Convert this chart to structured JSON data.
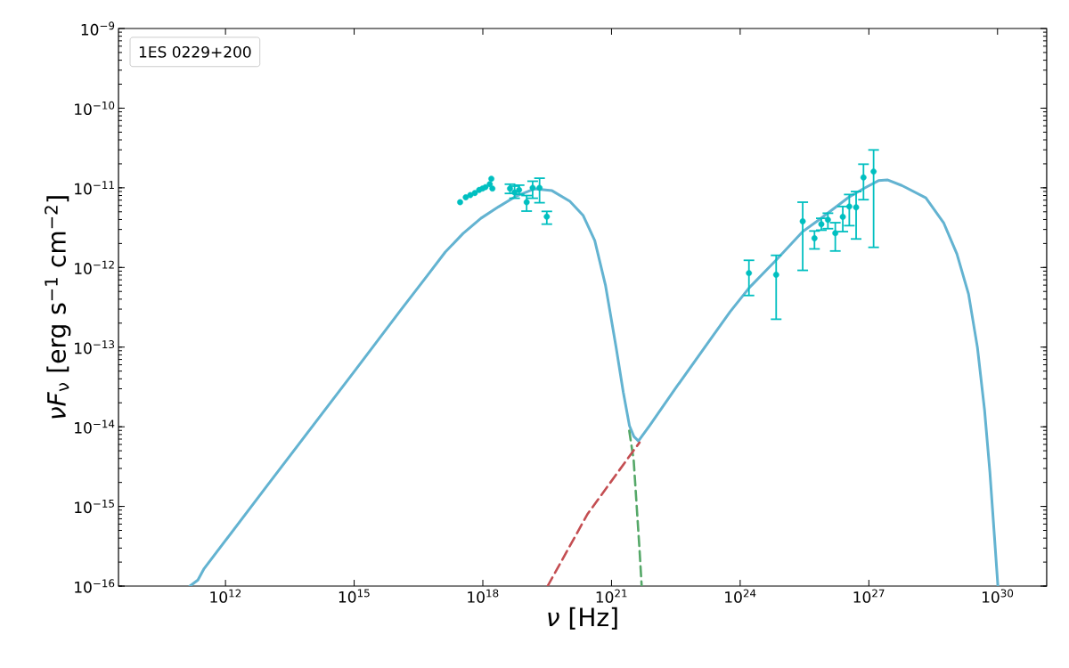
{
  "chart_data": {
    "type": "line",
    "xlabel": "*ν* [Hz]",
    "ylabel": "*νF*$_{ν}$ [erg s$^{−1}$ cm$^{−2}$]",
    "annotations": [
      "1ES 0229+200"
    ],
    "log": "xy",
    "xlim": [
      3200000000.0,
      1.4e+31
    ],
    "ylim": [
      1e-16,
      1e-09
    ],
    "xticks": [
      {
        "value": 1000000000000.0,
        "label": "10$^{12}$"
      },
      {
        "value": 1000000000000000.0,
        "label": "10$^{15}$"
      },
      {
        "value": 1e+18,
        "label": "10$^{18}$"
      },
      {
        "value": 1e+21,
        "label": "10$^{21}$"
      },
      {
        "value": 1e+24,
        "label": "10$^{24}$"
      },
      {
        "value": 1e+27,
        "label": "10$^{27}$"
      },
      {
        "value": 1e+30,
        "label": "10$^{30}$"
      }
    ],
    "yticks": [
      {
        "value": 1e-16,
        "label": "10$^{−16}$"
      },
      {
        "value": 1e-15,
        "label": "10$^{−15}$"
      },
      {
        "value": 1e-14,
        "label": "10$^{−14}$"
      },
      {
        "value": 1e-13,
        "label": "10$^{−13}$"
      },
      {
        "value": 1e-12,
        "label": "10$^{−12}$"
      },
      {
        "value": 1e-11,
        "label": "10$^{−11}$"
      },
      {
        "value": 1e-10,
        "label": "10$^{−10}$"
      },
      {
        "value": 1e-09,
        "label": "10$^{−9}$"
      }
    ],
    "series": [
      {
        "color": "#63b3d1",
        "line_style": "solid",
        "marker": "none",
        "x": [
          148000000000.0,
          227000000000.0,
          318000000000.0,
          9400000000000.0,
          1120000000000000.0,
          1.22e+16,
          5.13e+16,
          1.33e+17,
          3.46e+17,
          9e+17,
          2.34e+18,
          6.08e+18,
          1.58e+19,
          4.11e+19,
          1.07e+20,
          2.19e+20,
          4.07e+20,
          7.22e+20,
          1.28e+21,
          1.88e+21,
          2.62e+21,
          3.33e+21,
          4.24e+21,
          7.87e+21,
          3.3e+22,
          2.23e+23,
          5.8e+23,
          1.62e+24,
          6.9e+24,
          2.87e+25,
          6.89e+25,
          3.33e+26,
          7.52e+26,
          1.67e+27,
          2.69e+27,
          5.86e+27,
          2.13e+28,
          5.53e+28,
          1.13e+29,
          2.11e+29,
          3.4e+29,
          4.98e+29,
          6.64e+29,
          8.41e+29,
          1.02e+30
        ],
        "values": [
          1e-16,
          1.19e-16,
          1.66e-16,
          1.83e-15,
          5.33e-14,
          2.92e-13,
          7.97e-13,
          1.56e-12,
          2.67e-12,
          4.14e-12,
          5.79e-12,
          7.89e-12,
          9.7e-12,
          9.2e-12,
          6.76e-12,
          4.48e-12,
          2.18e-12,
          6.01e-13,
          9.9e-14,
          2.73e-14,
          1.03e-14,
          7.53e-15,
          6.62e-15,
          1.05e-14,
          3.18e-14,
          1.35e-13,
          2.77e-13,
          5.56e-13,
          1.24e-12,
          2.82e-12,
          3.97e-12,
          7.55e-12,
          9.77e-12,
          1.23e-11,
          1.26e-11,
          1.07e-11,
          7.5e-12,
          3.65e-12,
          1.48e-12,
          4.64e-13,
          9.9e-14,
          1.63e-14,
          2.69e-15,
          4.43e-16,
          1e-16
        ]
      },
      {
        "color": "#55a868",
        "line_style": "dashed",
        "marker": "none",
        "x": [
          2.59e+21,
          3.29e+21,
          3.85e+21,
          4.5e+21,
          5.05e+21
        ],
        "values": [
          8.95e-15,
          3.79e-15,
          1.04e-15,
          2.88e-16,
          1e-16
        ]
      },
      {
        "color": "#c44e52",
        "line_style": "dashed",
        "marker": "none",
        "x": [
          3.24e+19,
          2.78e+20,
          3.55e+21,
          4.5e+21
        ],
        "values": [
          1e-16,
          8.07e-16,
          5.35e-15,
          6.34e-15
        ]
      },
      {
        "type": "scatter",
        "color": "#00bfc0",
        "marker": "circle",
        "x": [
          2.95e+17,
          4e+17,
          5.1e+17,
          6.5e+17,
          8.2e+17,
          9.8e+17,
          1.15e+18,
          1.45e+18,
          1.58e+18,
          1.67e+18,
          4.3e+18,
          5.5e+18,
          7e+18,
          1.05e+19,
          1.45e+19,
          2.1e+19,
          3.1e+19
        ],
        "values": [
          6.6e-12,
          7.6e-12,
          8.1e-12,
          8.6e-12,
          9.4e-12,
          9.8e-12,
          1.02e-11,
          1.11e-11,
          1.3e-11,
          9.8e-12,
          9.8e-12,
          8.75e-12,
          9.4e-12,
          6.6e-12,
          1e-11,
          1e-11,
          4.35e-12
        ],
        "errors": [
          null,
          null,
          null,
          null,
          null,
          null,
          null,
          null,
          null,
          null,
          [
            8.5e-12,
            1.11e-11
          ],
          [
            7.4e-12,
            1.05e-11
          ],
          [
            8.3e-12,
            1.08e-11
          ],
          [
            5.1e-12,
            8e-12
          ],
          [
            7.4e-12,
            1.21e-11
          ],
          [
            6.5e-12,
            1.32e-11
          ],
          [
            3.5e-12,
            5.06e-12
          ]
        ]
      },
      {
        "type": "scatter",
        "color": "#00bfc0",
        "marker": "circle",
        "x": [
          1.6e+24,
          6.9e+24,
          2.87e+25,
          5.4e+25,
          7.8e+25,
          1.11e+26,
          1.65e+26,
          2.47e+26,
          3.5e+26,
          5.05e+26,
          7.5e+26,
          1.29e+27
        ],
        "values": [
          8.5e-13,
          8.1e-13,
          3.8e-12,
          2.33e-12,
          3.5e-12,
          3.97e-12,
          2.7e-12,
          4.33e-12,
          5.83e-12,
          5.69e-12,
          1.35e-11,
          1.6e-11
        ],
        "errors": [
          [
            4.45e-13,
            1.23e-12
          ],
          [
            2.24e-13,
            1.42e-12
          ],
          [
            9.2e-13,
            6.6e-12
          ],
          [
            1.71e-12,
            2.87e-12
          ],
          [
            2.94e-12,
            4.14e-12
          ],
          [
            3.07e-12,
            4.8e-12
          ],
          [
            1.61e-12,
            3.65e-12
          ],
          [
            2.82e-12,
            5.83e-12
          ],
          [
            3.35e-12,
            8.24e-12
          ],
          [
            2.28e-12,
            8.98e-12
          ],
          [
            7.1e-12,
            1.98e-11
          ],
          [
            1.79e-12,
            2.99e-11
          ]
        ]
      }
    ]
  }
}
